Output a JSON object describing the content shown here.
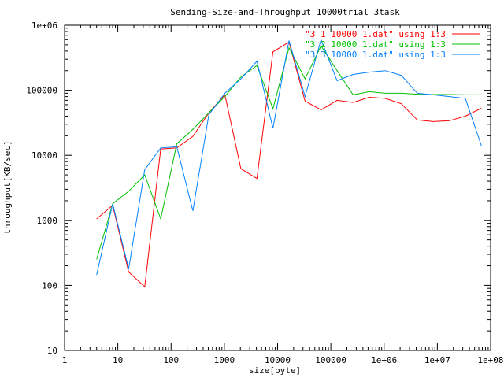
{
  "chart_data": {
    "type": "line",
    "title": "Sending-Size-and-Throughput 10000trial 3task",
    "xlabel": "size[byte]",
    "ylabel": "throughput[KB/sec]",
    "xscale": "log",
    "yscale": "log",
    "xlim": [
      1,
      100000000
    ],
    "ylim": [
      10,
      1000000
    ],
    "grid": false,
    "legend_position": "top-right",
    "x_tick_labels": [
      "1",
      "10",
      "100",
      "1000",
      "10000",
      "100000",
      "1e+06",
      "1e+07",
      "1e+08"
    ],
    "y_tick_labels": [
      "10",
      "100",
      "1000",
      "10000",
      "100000",
      "1e+06"
    ],
    "x_ticks": [
      1,
      10,
      100,
      1000,
      10000,
      100000,
      1000000,
      10000000,
      100000000
    ],
    "y_ticks": [
      10,
      100,
      1000,
      10000,
      100000,
      1000000
    ],
    "x": [
      4,
      8,
      16,
      32,
      64,
      128,
      256,
      512,
      1024,
      2048,
      4096,
      8192,
      16384,
      32768,
      65536,
      131072,
      262144,
      524288,
      1048576,
      2097152,
      4194304,
      8388608,
      16777216,
      33554432,
      67108864
    ],
    "series": [
      {
        "name": "\"3 1 10000 1.dat\" using 1:3",
        "color": "#ff0000",
        "values": [
          1050,
          1700,
          160,
          95,
          12500,
          13000,
          19500,
          45000,
          85000,
          6200,
          4400,
          390000,
          550000,
          68000,
          50000,
          70000,
          65000,
          78000,
          75000,
          62000,
          35000,
          33000,
          34000,
          40000,
          53000
        ]
      },
      {
        "name": "\"3 2 10000 1.dat\" using 1:3",
        "color": "#00c000",
        "values": [
          250,
          1800,
          2800,
          5000,
          1050,
          15000,
          25000,
          45000,
          80000,
          160000,
          240000,
          52000,
          450000,
          150000,
          480000,
          200000,
          85000,
          95000,
          90000,
          90000,
          87000,
          86000,
          86000,
          85000,
          85000
        ]
      },
      {
        "name": "\"3 3 10000 1.dat\" using 1:3",
        "color": "#0080ff",
        "values": [
          145,
          1800,
          180,
          6000,
          13000,
          13500,
          1400,
          42000,
          90000,
          150000,
          280000,
          26000,
          580000,
          80000,
          600000,
          140000,
          175000,
          190000,
          200000,
          170000,
          90000,
          85000,
          80000,
          75000,
          14000
        ]
      }
    ]
  }
}
